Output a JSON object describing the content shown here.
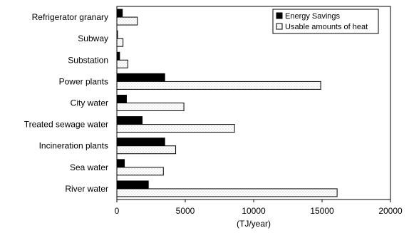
{
  "chart_data": {
    "type": "bar",
    "orientation": "horizontal",
    "categories": [
      "River water",
      "Sea water",
      "Incineration plants",
      "Treated sewage water",
      "City water",
      "Power plants",
      "Substation",
      "Subway",
      "Refrigerator granary"
    ],
    "series": [
      {
        "name": "Energy Savings",
        "color": "#000000",
        "pattern": "solid",
        "values": [
          2300,
          550,
          3500,
          1850,
          700,
          3500,
          200,
          50,
          400
        ]
      },
      {
        "name": "Usable amounts of heat",
        "color": "#ffffff",
        "pattern": "dotted",
        "values": [
          16100,
          3400,
          4300,
          8600,
          4900,
          14900,
          800,
          450,
          1500
        ]
      }
    ],
    "xlabel": "(TJ/year)",
    "ylabel": "",
    "title": "",
    "xlim": [
      0,
      20000
    ],
    "xticks": [
      0,
      5000,
      10000,
      15000,
      20000
    ],
    "xtick_labels": [
      "0",
      "5000",
      "10000",
      "15000",
      "20000"
    ],
    "grid": false,
    "legend_position": "top-right"
  }
}
